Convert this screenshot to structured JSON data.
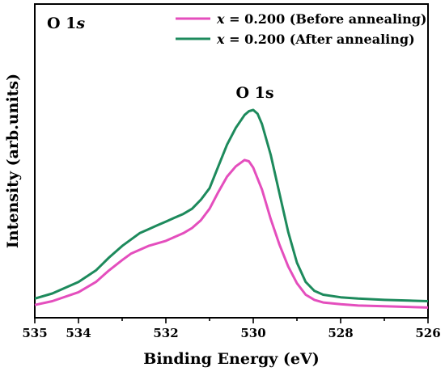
{
  "chart_data": {
    "type": "line",
    "panel_label": {
      "main": "O 1",
      "italic": "s"
    },
    "peak_annotation": "O 1s",
    "xlabel": "Binding Energy (eV)",
    "ylabel": "Intensity (arb.units)",
    "x_reversed": true,
    "xlim": [
      535,
      526
    ],
    "x_ticks": [
      535,
      534,
      532,
      530,
      528,
      526
    ],
    "y_ticks_shown": false,
    "ylim": [
      0,
      100
    ],
    "legend_position": "top-right",
    "grid": false,
    "series": [
      {
        "name": "x = 0.200 (Before annealing)",
        "name_var": "x",
        "name_rest": " = 0.200 (Before annealing)",
        "color": "#e44ebd",
        "x": [
          535.0,
          534.6,
          534.0,
          533.6,
          533.3,
          533.0,
          532.8,
          532.6,
          532.4,
          532.2,
          532.0,
          531.8,
          531.6,
          531.4,
          531.2,
          531.0,
          530.8,
          530.6,
          530.4,
          530.2,
          530.1,
          530.0,
          529.8,
          529.6,
          529.4,
          529.2,
          529.0,
          528.8,
          528.6,
          528.4,
          528.0,
          527.6,
          527.0,
          526.0
        ],
        "y": [
          1.5,
          3.0,
          6.5,
          10.5,
          15.0,
          19.0,
          21.5,
          23.0,
          24.5,
          25.5,
          26.5,
          28.0,
          29.5,
          31.5,
          34.5,
          39.0,
          45.5,
          51.5,
          55.5,
          58.0,
          57.5,
          55.0,
          46.5,
          35.0,
          25.0,
          16.5,
          10.0,
          5.5,
          3.5,
          2.5,
          1.8,
          1.3,
          1.0,
          0.5
        ]
      },
      {
        "name": "x = 0.200 (After annealing)",
        "name_var": "x",
        "name_rest": " = 0.200 (After annealing)",
        "color": "#1d8a5c",
        "x": [
          535.0,
          534.6,
          534.0,
          533.6,
          533.3,
          533.0,
          532.8,
          532.6,
          532.4,
          532.2,
          532.0,
          531.8,
          531.6,
          531.4,
          531.2,
          531.0,
          530.8,
          530.6,
          530.4,
          530.2,
          530.1,
          530.0,
          529.9,
          529.8,
          529.6,
          529.4,
          529.2,
          529.0,
          528.8,
          528.6,
          528.4,
          528.0,
          527.6,
          527.0,
          526.0
        ],
        "y": [
          4.0,
          6.0,
          10.5,
          15.0,
          20.0,
          24.5,
          27.0,
          29.5,
          31.0,
          32.5,
          34.0,
          35.5,
          37.0,
          39.0,
          42.5,
          47.0,
          55.5,
          64.0,
          70.5,
          75.5,
          77.0,
          77.5,
          76.0,
          72.0,
          60.0,
          45.0,
          30.0,
          18.0,
          10.5,
          7.0,
          5.5,
          4.5,
          4.0,
          3.5,
          3.0
        ]
      }
    ]
  }
}
